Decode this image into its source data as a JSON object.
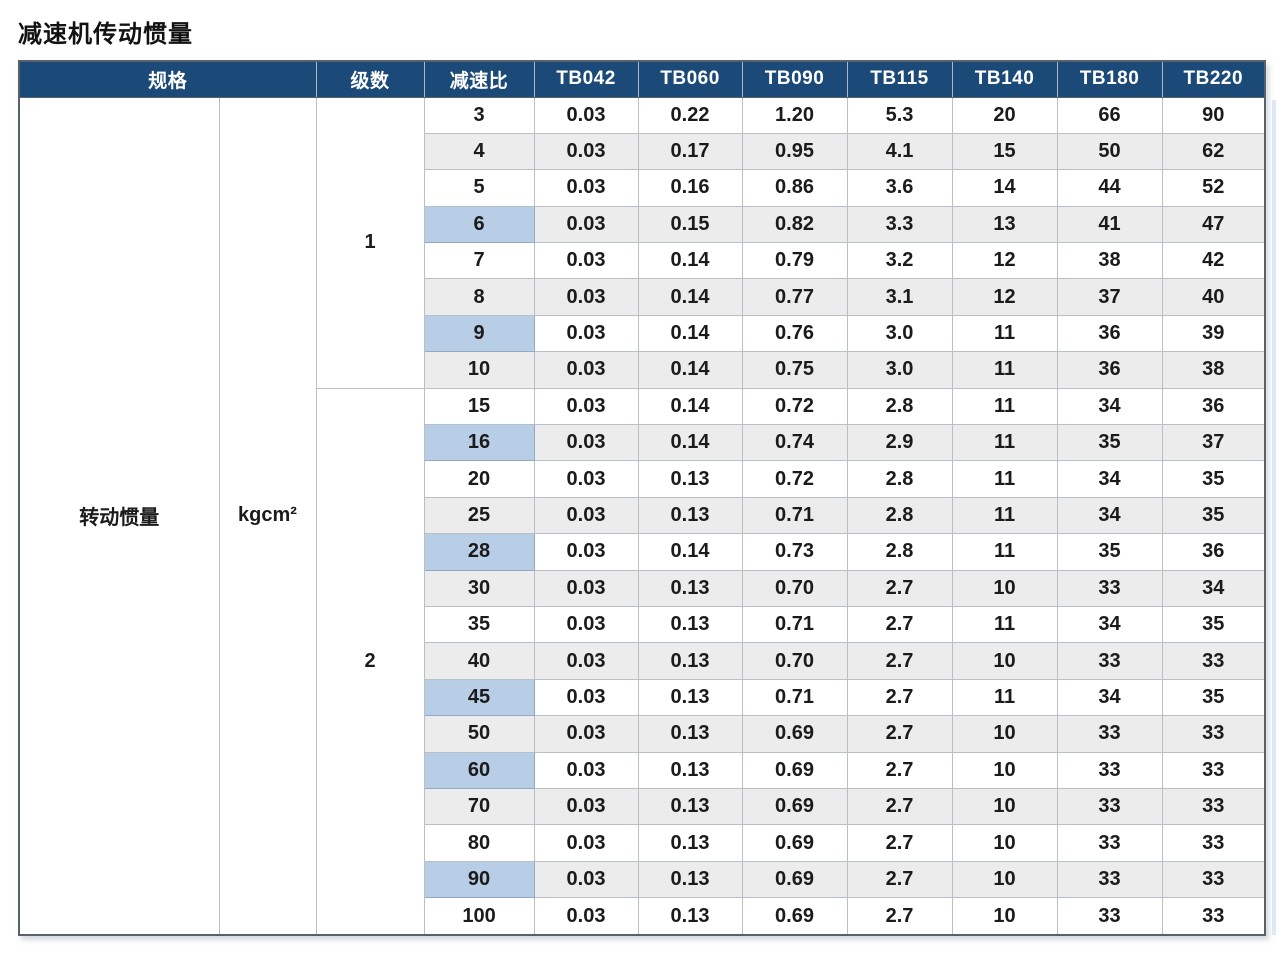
{
  "page_title": "减速机传动惯量",
  "colors": {
    "header_bg": "#1c4a78",
    "header_text": "#ffffff",
    "row_alt": "#ececec",
    "highlight": "#b8cde6",
    "border": "#b9bfc6"
  },
  "table": {
    "spec_header": "规格",
    "col_headers": [
      "级数",
      "减速比",
      "TB042",
      "TB060",
      "TB090",
      "TB115",
      "TB140",
      "TB180",
      "TB220"
    ],
    "spec_label": "转动惯量",
    "unit": "kgcm²",
    "groups": [
      {
        "stage": "1",
        "rows": [
          {
            "ratio": "3",
            "highlight": false,
            "values": [
              "0.03",
              "0.22",
              "1.20",
              "5.3",
              "20",
              "66",
              "90"
            ]
          },
          {
            "ratio": "4",
            "highlight": false,
            "values": [
              "0.03",
              "0.17",
              "0.95",
              "4.1",
              "15",
              "50",
              "62"
            ]
          },
          {
            "ratio": "5",
            "highlight": false,
            "values": [
              "0.03",
              "0.16",
              "0.86",
              "3.6",
              "14",
              "44",
              "52"
            ]
          },
          {
            "ratio": "6",
            "highlight": true,
            "values": [
              "0.03",
              "0.15",
              "0.82",
              "3.3",
              "13",
              "41",
              "47"
            ]
          },
          {
            "ratio": "7",
            "highlight": false,
            "values": [
              "0.03",
              "0.14",
              "0.79",
              "3.2",
              "12",
              "38",
              "42"
            ]
          },
          {
            "ratio": "8",
            "highlight": false,
            "values": [
              "0.03",
              "0.14",
              "0.77",
              "3.1",
              "12",
              "37",
              "40"
            ]
          },
          {
            "ratio": "9",
            "highlight": true,
            "values": [
              "0.03",
              "0.14",
              "0.76",
              "3.0",
              "11",
              "36",
              "39"
            ]
          },
          {
            "ratio": "10",
            "highlight": false,
            "values": [
              "0.03",
              "0.14",
              "0.75",
              "3.0",
              "11",
              "36",
              "38"
            ]
          }
        ]
      },
      {
        "stage": "2",
        "rows": [
          {
            "ratio": "15",
            "highlight": false,
            "values": [
              "0.03",
              "0.14",
              "0.72",
              "2.8",
              "11",
              "34",
              "36"
            ]
          },
          {
            "ratio": "16",
            "highlight": true,
            "values": [
              "0.03",
              "0.14",
              "0.74",
              "2.9",
              "11",
              "35",
              "37"
            ]
          },
          {
            "ratio": "20",
            "highlight": false,
            "values": [
              "0.03",
              "0.13",
              "0.72",
              "2.8",
              "11",
              "34",
              "35"
            ]
          },
          {
            "ratio": "25",
            "highlight": false,
            "values": [
              "0.03",
              "0.13",
              "0.71",
              "2.8",
              "11",
              "34",
              "35"
            ]
          },
          {
            "ratio": "28",
            "highlight": true,
            "values": [
              "0.03",
              "0.14",
              "0.73",
              "2.8",
              "11",
              "35",
              "36"
            ]
          },
          {
            "ratio": "30",
            "highlight": false,
            "values": [
              "0.03",
              "0.13",
              "0.70",
              "2.7",
              "10",
              "33",
              "34"
            ]
          },
          {
            "ratio": "35",
            "highlight": false,
            "values": [
              "0.03",
              "0.13",
              "0.71",
              "2.7",
              "11",
              "34",
              "35"
            ]
          },
          {
            "ratio": "40",
            "highlight": false,
            "values": [
              "0.03",
              "0.13",
              "0.70",
              "2.7",
              "10",
              "33",
              "33"
            ]
          },
          {
            "ratio": "45",
            "highlight": true,
            "values": [
              "0.03",
              "0.13",
              "0.71",
              "2.7",
              "11",
              "34",
              "35"
            ]
          },
          {
            "ratio": "50",
            "highlight": false,
            "values": [
              "0.03",
              "0.13",
              "0.69",
              "2.7",
              "10",
              "33",
              "33"
            ]
          },
          {
            "ratio": "60",
            "highlight": true,
            "values": [
              "0.03",
              "0.13",
              "0.69",
              "2.7",
              "10",
              "33",
              "33"
            ]
          },
          {
            "ratio": "70",
            "highlight": false,
            "values": [
              "0.03",
              "0.13",
              "0.69",
              "2.7",
              "10",
              "33",
              "33"
            ]
          },
          {
            "ratio": "80",
            "highlight": false,
            "values": [
              "0.03",
              "0.13",
              "0.69",
              "2.7",
              "10",
              "33",
              "33"
            ]
          },
          {
            "ratio": "90",
            "highlight": true,
            "values": [
              "0.03",
              "0.13",
              "0.69",
              "2.7",
              "10",
              "33",
              "33"
            ]
          },
          {
            "ratio": "100",
            "highlight": false,
            "values": [
              "0.03",
              "0.13",
              "0.69",
              "2.7",
              "10",
              "33",
              "33"
            ]
          }
        ]
      }
    ]
  }
}
